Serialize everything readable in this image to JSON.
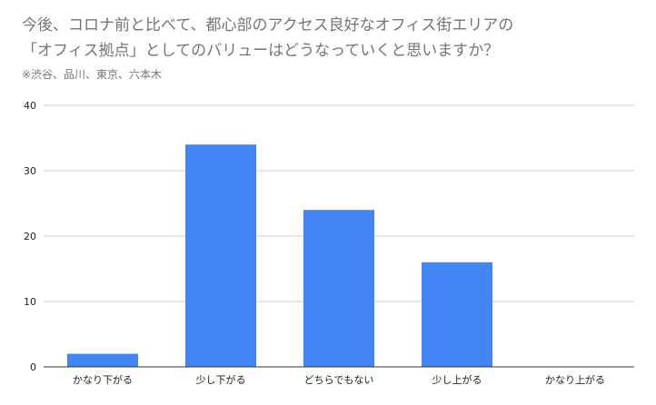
{
  "header": {
    "title_line1": "今後、コロナ前と比べて、都心部のアクセス良好なオフィス街エリアの",
    "title_line2": "「オフィス拠点」としてのバリューはどうなっていくと思いますか？",
    "subtitle": "※渋谷、品川、東京、六本木"
  },
  "colors": {
    "bar": "#4285f4",
    "grid": "#cccccc",
    "axis": "#333333",
    "text": "#757575",
    "tick_text": "#222222"
  },
  "chart_data": {
    "type": "bar",
    "title": "今後、コロナ前と比べて、都心部のアクセス良好なオフィス街エリアの「オフィス拠点」としてのバリューはどうなっていくと思いますか？",
    "subtitle": "※渋谷、品川、東京、六本木",
    "categories": [
      "かなり下がる",
      "少し下がる",
      "どちらでもない",
      "少し上がる",
      "かなり上がる"
    ],
    "values": [
      2,
      34,
      24,
      16,
      0
    ],
    "xlabel": "",
    "ylabel": "",
    "ylim": [
      0,
      40
    ],
    "yticks": [
      0,
      10,
      20,
      30,
      40
    ],
    "grid": true,
    "legend": "none"
  }
}
